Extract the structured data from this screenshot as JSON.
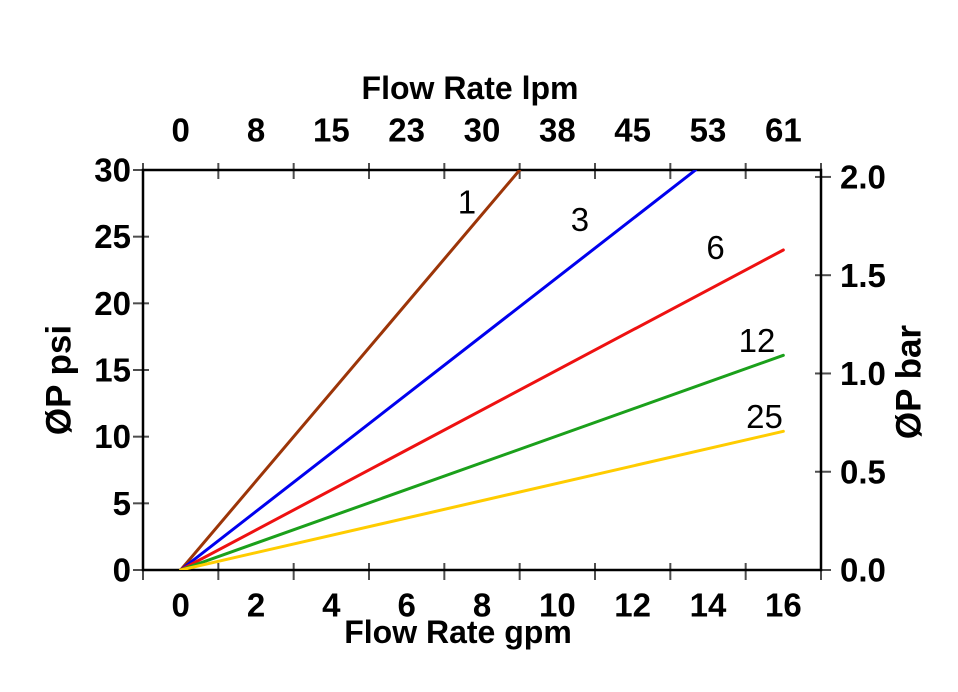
{
  "chart_data": {
    "type": "line",
    "description": "Pressure drop vs flow rate curves for five ratings (1, 3, 6, 12, 25); straight lines radiating from the origin",
    "colors": {
      "background": "#ffffff",
      "axis": "#000000",
      "ticks": "#4d4d4d",
      "text": "#000000"
    },
    "axes": {
      "top": {
        "label": "Flow Rate lpm",
        "tick_labels": [
          "0",
          "8",
          "15",
          "23",
          "30",
          "38",
          "45",
          "53",
          "61"
        ]
      },
      "bottom": {
        "label": "Flow Rate gpm",
        "tick_labels": [
          "0",
          "2",
          "4",
          "6",
          "8",
          "10",
          "12",
          "14",
          "16"
        ],
        "range_gpm": [
          -1,
          17
        ],
        "tick_boundary_step": 2
      },
      "left": {
        "label": "ØP psi",
        "ticks": [
          0,
          5,
          10,
          15,
          20,
          25,
          30
        ],
        "range": [
          0,
          30
        ]
      },
      "right": {
        "label": "ØP bar",
        "tick_labels": [
          "0.0",
          "0.5",
          "1.0",
          "1.5",
          "2.0"
        ],
        "psi_per_bar": 14.74
      }
    },
    "grid": "off",
    "legend": "inline-labels",
    "series": [
      {
        "name": "1",
        "color": "#9c3508",
        "points_gpm_psi": [
          [
            0,
            0
          ],
          [
            9.0,
            30
          ]
        ],
        "label_at_gpm_psi": [
          7.6,
          27.6
        ]
      },
      {
        "name": "3",
        "color": "#0000ee",
        "points_gpm_psi": [
          [
            0,
            0
          ],
          [
            13.67,
            30
          ]
        ],
        "label_at_gpm_psi": [
          10.6,
          26.3
        ]
      },
      {
        "name": "6",
        "color": "#ee1111",
        "points_gpm_psi": [
          [
            0,
            0
          ],
          [
            16,
            24.0
          ]
        ],
        "label_at_gpm_psi": [
          14.2,
          24.2
        ]
      },
      {
        "name": "12",
        "color": "#1ba01b",
        "points_gpm_psi": [
          [
            0,
            0
          ],
          [
            16,
            16.1
          ]
        ],
        "label_at_gpm_psi": [
          15.3,
          17.2
        ]
      },
      {
        "name": "25",
        "color": "#ffcc00",
        "points_gpm_psi": [
          [
            0,
            0
          ],
          [
            16,
            10.4
          ]
        ],
        "label_at_gpm_psi": [
          15.5,
          11.5
        ]
      }
    ]
  }
}
